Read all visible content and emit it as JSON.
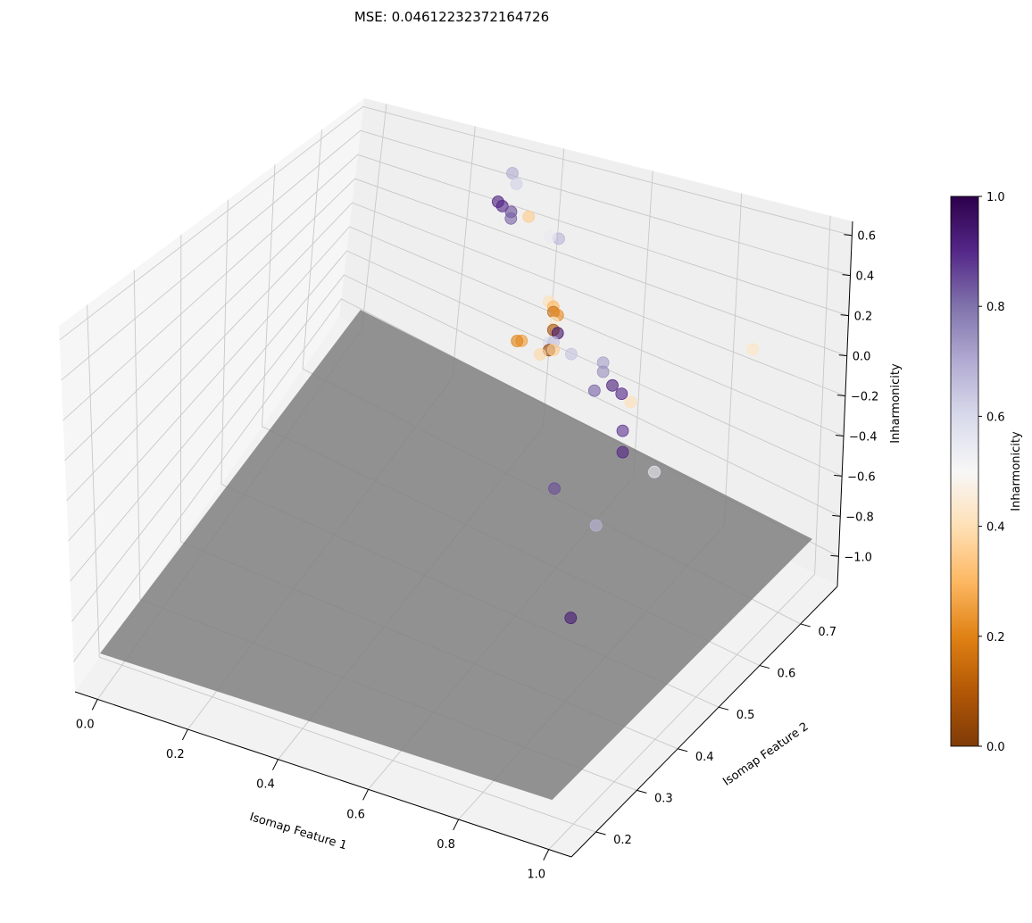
{
  "title": "MSE: 0.04612232372164726",
  "chart_data": {
    "type": "scatter",
    "subtype": "3d-scatter-with-regression-plane",
    "title": "MSE: 0.04612232372164726",
    "xlabel": "Isomap Feature 1",
    "ylabel": "Isomap Feature 2",
    "zlabel": "Inharmonicity",
    "xlim": [
      -0.05,
      1.05
    ],
    "ylim": [
      0.14,
      0.79
    ],
    "zlim": [
      -1.15,
      0.67
    ],
    "xticks": [
      "0.0",
      "0.2",
      "0.4",
      "0.6",
      "0.8",
      "1.0"
    ],
    "yticks": [
      "0.2",
      "0.3",
      "0.4",
      "0.5",
      "0.6",
      "0.7"
    ],
    "zticks": [
      "−1.0",
      "−0.8",
      "−0.6",
      "−0.4",
      "−0.2",
      "0.0",
      "0.2",
      "0.4",
      "0.6"
    ],
    "grid": true,
    "colormap": "PuOr",
    "colorbar": {
      "label": "Inharmonicity",
      "ticks": [
        "0.0",
        "0.2",
        "0.4",
        "0.6",
        "0.8",
        "1.0"
      ],
      "range": [
        0,
        1
      ],
      "stops": [
        "#7f3b08",
        "#b35806",
        "#e08214",
        "#fdb863",
        "#fee0b6",
        "#f7f7f7",
        "#d8daeb",
        "#b2abd2",
        "#8073ac",
        "#542788",
        "#2d004b"
      ]
    },
    "plane": {
      "color": "#808080",
      "corners_xyz": [
        [
          0,
          0.15,
          -0.95
        ],
        [
          1,
          0.15,
          -0.95
        ],
        [
          1,
          0.78,
          -0.95
        ],
        [
          0,
          0.78,
          -0.95
        ]
      ]
    },
    "points": [
      {
        "x": 0.3,
        "y": 0.78,
        "z": 0.45,
        "c": 0.7
      },
      {
        "x": 0.32,
        "y": 0.77,
        "z": 0.42,
        "c": 0.62
      },
      {
        "x": 0.32,
        "y": 0.73,
        "z": 0.4,
        "c": 0.92
      },
      {
        "x": 0.33,
        "y": 0.73,
        "z": 0.38,
        "c": 0.9
      },
      {
        "x": 0.35,
        "y": 0.73,
        "z": 0.36,
        "c": 0.85
      },
      {
        "x": 0.36,
        "y": 0.72,
        "z": 0.35,
        "c": 0.82
      },
      {
        "x": 0.38,
        "y": 0.74,
        "z": 0.33,
        "c": 0.35
      },
      {
        "x": 0.43,
        "y": 0.74,
        "z": 0.25,
        "c": 0.55
      },
      {
        "x": 0.44,
        "y": 0.75,
        "z": 0.22,
        "c": 0.68
      },
      {
        "x": 0.5,
        "y": 0.67,
        "z": 0.08,
        "c": 0.4
      },
      {
        "x": 0.51,
        "y": 0.67,
        "z": 0.06,
        "c": 0.3
      },
      {
        "x": 0.52,
        "y": 0.66,
        "z": 0.06,
        "c": 0.15
      },
      {
        "x": 0.53,
        "y": 0.66,
        "z": 0.05,
        "c": 0.22
      },
      {
        "x": 0.53,
        "y": 0.65,
        "z": 0.03,
        "c": 0.45
      },
      {
        "x": 0.54,
        "y": 0.64,
        "z": 0.02,
        "c": 0.08
      },
      {
        "x": 0.55,
        "y": 0.64,
        "z": 0.01,
        "c": 0.95
      },
      {
        "x": 0.55,
        "y": 0.62,
        "z": 0.0,
        "c": 0.6
      },
      {
        "x": 0.56,
        "y": 0.61,
        "z": -0.01,
        "c": 0.05
      },
      {
        "x": 0.56,
        "y": 0.62,
        "z": 0.01,
        "c": 0.65
      },
      {
        "x": 0.57,
        "y": 0.61,
        "z": 0.0,
        "c": 0.35
      },
      {
        "x": 0.55,
        "y": 0.6,
        "z": -0.02,
        "c": 0.38
      },
      {
        "x": 0.49,
        "y": 0.62,
        "z": -0.04,
        "c": 0.25
      },
      {
        "x": 0.48,
        "y": 0.62,
        "z": -0.05,
        "c": 0.2
      },
      {
        "x": 0.6,
        "y": 0.62,
        "z": -0.02,
        "c": 0.65
      },
      {
        "x": 0.68,
        "y": 0.61,
        "z": 0.02,
        "c": 0.72
      },
      {
        "x": 0.69,
        "y": 0.6,
        "z": 0.0,
        "c": 0.75
      },
      {
        "x": 0.7,
        "y": 0.57,
        "z": -0.03,
        "c": 0.82
      },
      {
        "x": 0.73,
        "y": 0.58,
        "z": 0.0,
        "c": 0.92
      },
      {
        "x": 0.76,
        "y": 0.57,
        "z": 0.0,
        "c": 0.9
      },
      {
        "x": 0.79,
        "y": 0.56,
        "z": 0.0,
        "c": 0.4
      },
      {
        "x": 0.83,
        "y": 0.5,
        "z": 0.0,
        "c": 0.88
      },
      {
        "x": 0.84,
        "y": 0.49,
        "z": -0.08,
        "c": 0.9
      },
      {
        "x": 0.92,
        "y": 0.48,
        "z": -0.1,
        "c": 0.55
      },
      {
        "x": 1.0,
        "y": 0.62,
        "z": 0.3,
        "c": 0.42
      },
      {
        "x": 0.7,
        "y": 0.48,
        "z": -0.35,
        "c": 0.85
      },
      {
        "x": 0.83,
        "y": 0.44,
        "z": -0.35,
        "c": 0.68
      },
      {
        "x": 0.84,
        "y": 0.37,
        "z": -0.65,
        "c": 0.93
      }
    ]
  }
}
